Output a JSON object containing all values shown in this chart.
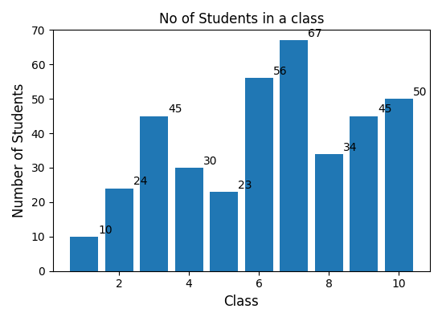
{
  "categories": [
    1,
    2,
    3,
    4,
    5,
    6,
    7,
    8,
    9,
    10
  ],
  "values": [
    10,
    24,
    45,
    30,
    23,
    56,
    67,
    34,
    45,
    50
  ],
  "bar_color": "#2077b4",
  "title": "No of Students in a class",
  "xlabel": "Class",
  "ylabel": "Number of Students",
  "ylim": [
    0,
    70
  ],
  "title_fontsize": 12,
  "label_fontsize": 10,
  "axis_fontsize": 12,
  "xticks": [
    2,
    4,
    6,
    8,
    10
  ],
  "bar_width": 0.8
}
